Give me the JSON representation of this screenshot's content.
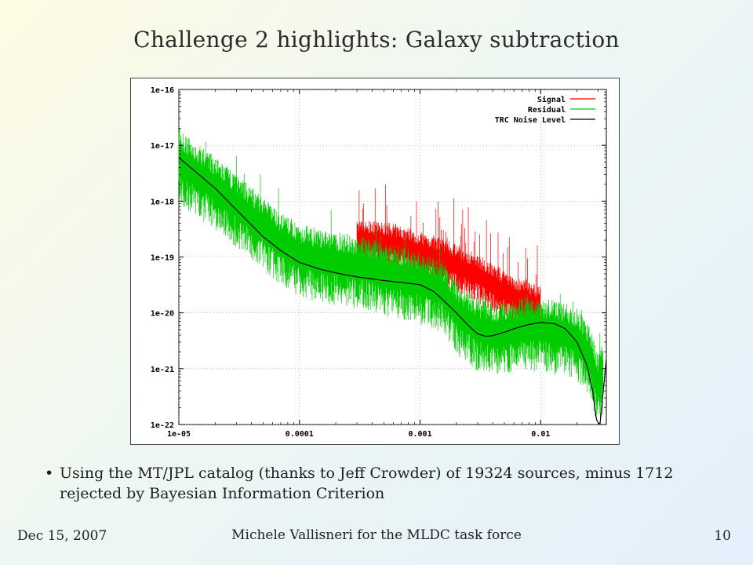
{
  "slide": {
    "title": "Challenge 2 highlights: Galaxy subtraction",
    "bullet": "Using the MT/JPL catalog (thanks to Jeff Crowder) of 19324 sources, minus 1712 rejected by Bayesian Information Criterion",
    "footer_date": "Dec 15, 2007",
    "footer_author": "Michele Vallisneri for the MLDC task force",
    "page_number": "10"
  },
  "chart_data": {
    "type": "line",
    "title": "",
    "xlabel": "",
    "ylabel": "",
    "x_scale": "log",
    "y_scale": "log",
    "xlim": [
      1e-05,
      0.035
    ],
    "ylim": [
      1e-22,
      1e-16
    ],
    "x_ticks": [
      {
        "value": 1e-05,
        "label": "1e-05"
      },
      {
        "value": 0.0001,
        "label": "0.0001"
      },
      {
        "value": 0.001,
        "label": "0.001"
      },
      {
        "value": 0.01,
        "label": "0.01"
      }
    ],
    "y_ticks": [
      {
        "value": 1e-16,
        "label": "1e-16"
      },
      {
        "value": 1e-17,
        "label": "1e-17"
      },
      {
        "value": 1e-18,
        "label": "1e-18"
      },
      {
        "value": 1e-19,
        "label": "1e-19"
      },
      {
        "value": 1e-20,
        "label": "1e-20"
      },
      {
        "value": 1e-21,
        "label": "1e-21"
      },
      {
        "value": 1e-22,
        "label": "1e-22"
      }
    ],
    "grid": true,
    "legend_position": "top-right",
    "series": [
      {
        "name": "Signal",
        "color": "#ff0000",
        "x": [
          0.0003,
          0.0004,
          0.0005,
          0.0006,
          0.0008,
          0.001,
          0.0013,
          0.0016,
          0.002,
          0.0025,
          0.003,
          0.004,
          0.005,
          0.006,
          0.008,
          0.01
        ],
        "y": [
          2e-19,
          2e-19,
          1.9e-19,
          1.8e-19,
          1.5e-19,
          1.3e-19,
          1.1e-19,
          9e-20,
          8e-20,
          6e-20,
          5e-20,
          3.5e-20,
          2.5e-20,
          2e-20,
          1.6e-20,
          1.5e-20
        ]
      },
      {
        "name": "Residual",
        "color": "#00cc00",
        "x": [
          1e-05,
          2e-05,
          3e-05,
          5e-05,
          7e-05,
          0.0001,
          0.00015,
          0.0002,
          0.0003,
          0.0005,
          0.0007,
          0.001,
          0.0015,
          0.002,
          0.003,
          0.004,
          0.005,
          0.007,
          0.01,
          0.015,
          0.02,
          0.025,
          0.03,
          0.033
        ],
        "y": [
          6e-18,
          2e-18,
          1e-18,
          4e-19,
          2e-19,
          1.3e-19,
          1e-19,
          9e-20,
          8e-20,
          6e-20,
          5e-20,
          4e-20,
          3e-20,
          1.2e-20,
          6e-21,
          5e-21,
          5e-21,
          6e-21,
          6e-21,
          5e-21,
          4e-21,
          2e-21,
          6e-22,
          1e-21
        ]
      },
      {
        "name": "TRC Noise Level",
        "color": "#000000",
        "x": [
          1e-05,
          2e-05,
          3e-05,
          5e-05,
          7e-05,
          0.0001,
          0.00015,
          0.0002,
          0.0003,
          0.0005,
          0.0007,
          0.001,
          0.0013,
          0.0016,
          0.002,
          0.0025,
          0.003,
          0.0035,
          0.004,
          0.005,
          0.006,
          0.008,
          0.01,
          0.013,
          0.016,
          0.02,
          0.024,
          0.027,
          0.029,
          0.031,
          0.033,
          0.035
        ],
        "y": [
          6e-18,
          1.7e-18,
          7e-19,
          2.3e-19,
          1.3e-19,
          8e-20,
          6e-20,
          5.2e-20,
          4.4e-20,
          3.8e-20,
          3.5e-20,
          3.2e-20,
          2.4e-20,
          1.6e-20,
          1e-20,
          6e-21,
          4.2e-21,
          3.8e-21,
          3.9e-21,
          4.5e-21,
          5.2e-21,
          6.2e-21,
          6.7e-21,
          6.4e-21,
          5.2e-21,
          3e-21,
          1.2e-21,
          4e-22,
          1.2e-22,
          1e-22,
          4e-22,
          1.5e-21
        ]
      }
    ]
  }
}
